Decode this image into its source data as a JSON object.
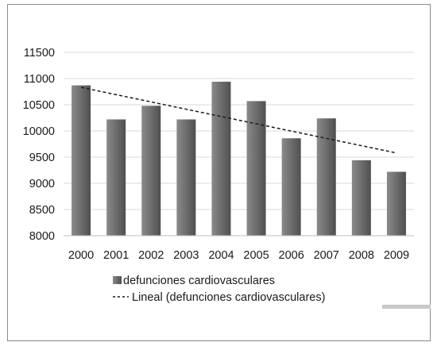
{
  "chart_data": {
    "type": "bar",
    "categories": [
      "2000",
      "2001",
      "2002",
      "2003",
      "2004",
      "2005",
      "2006",
      "2007",
      "2008",
      "2009"
    ],
    "series": [
      {
        "name": "defunciones cardiovasculares",
        "values": [
          10870,
          10220,
          10480,
          10220,
          10940,
          10570,
          9860,
          10240,
          9440,
          9220
        ],
        "color": "#6d6d6d"
      }
    ],
    "trendline": {
      "name": "Lineal (defunciones cardiovasculares)",
      "kind": "linear",
      "style": "dashed",
      "color": "#1a1a1a"
    },
    "title": "",
    "xlabel": "",
    "ylabel": "",
    "ylim": [
      8000,
      11500
    ],
    "yticks": [
      8000,
      8500,
      9000,
      9500,
      10000,
      10500,
      11000,
      11500
    ],
    "grid": true,
    "grid_color": "#d9d9d9",
    "legend_position": "bottom-left"
  }
}
